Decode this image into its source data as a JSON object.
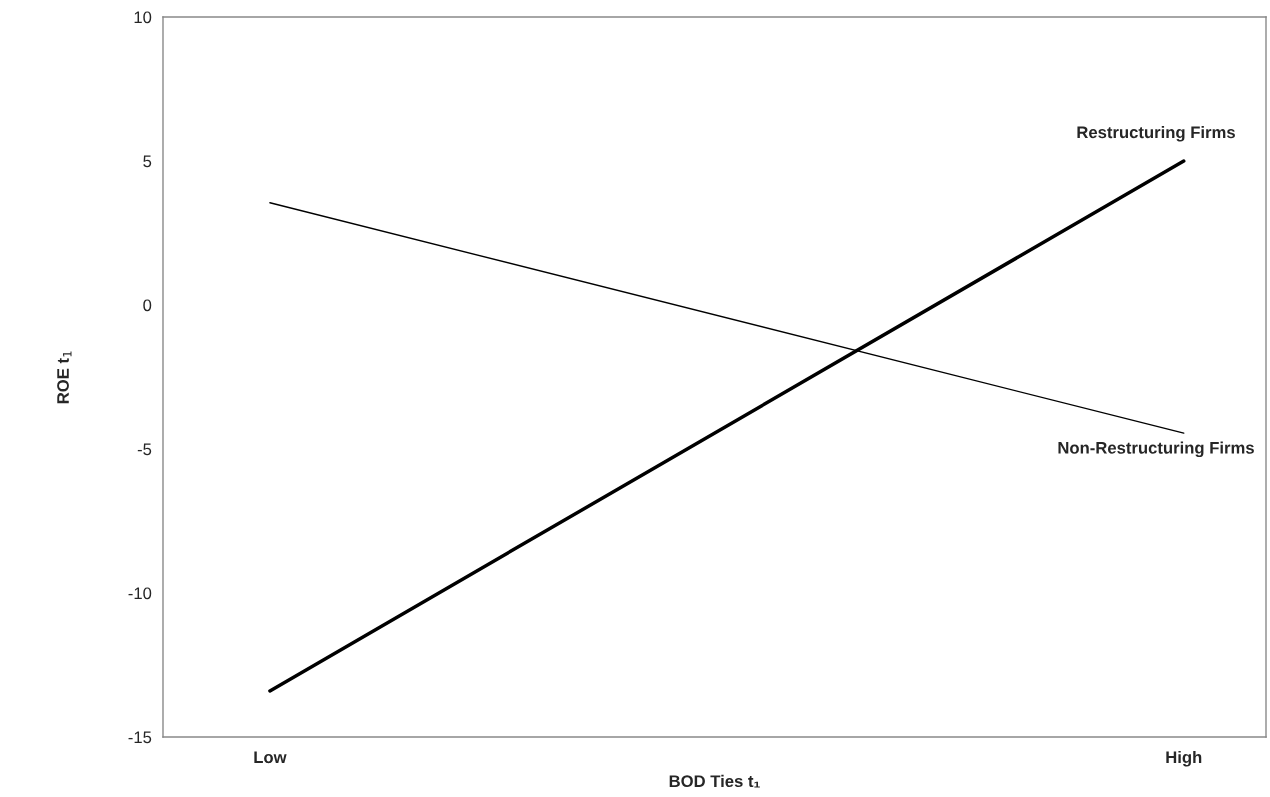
{
  "chart_data": {
    "type": "line",
    "xlabel": "BOD Ties t₁",
    "ylabel": "ROE t$_{1}$",
    "categories": [
      "Low",
      "High"
    ],
    "series": [
      {
        "name": "Restructuring Firms",
        "color": "#000000",
        "values": [
          -13.4,
          5.0
        ]
      },
      {
        "name": "Non-Restructuring Firms",
        "color": "#000000",
        "values": [
          3.55,
          -4.45
        ]
      }
    ],
    "ylim": [
      -15,
      10
    ],
    "yticks": [
      -15,
      -10,
      -5,
      0,
      5,
      10
    ],
    "grid": false,
    "legend": false,
    "marker": "none",
    "line_style": "solid"
  }
}
